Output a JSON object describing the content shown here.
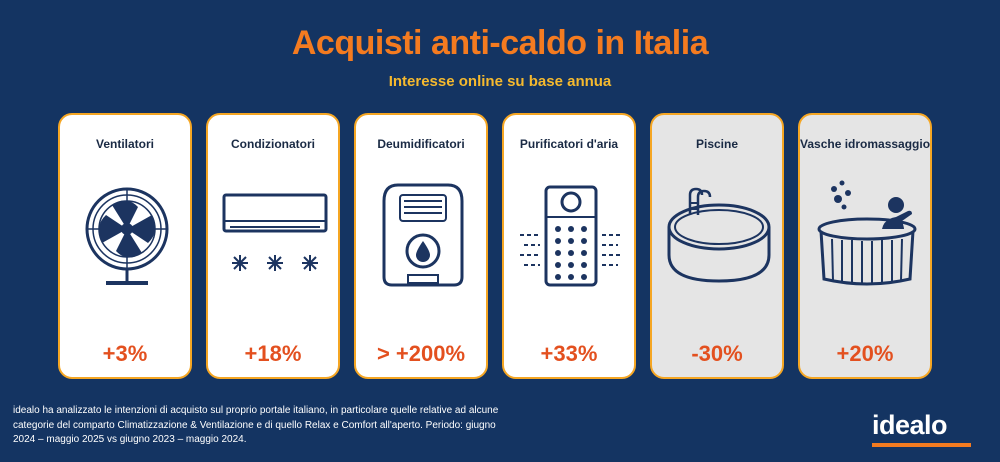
{
  "header": {
    "title": "Acquisti anti-caldo in Italia",
    "subtitle": "Interesse online su base annua"
  },
  "cards": [
    {
      "label": "Ventilatori",
      "value": "+3%",
      "icon": "fan-icon"
    },
    {
      "label": "Condizionatori",
      "value": "+18%",
      "icon": "air-conditioner-icon"
    },
    {
      "label": "Deumidificatori",
      "value": "> +200%",
      "icon": "dehumidifier-icon"
    },
    {
      "label": "Purificatori d'aria",
      "value": "+33%",
      "icon": "air-purifier-icon"
    },
    {
      "label": "Piscine",
      "value": "-30%",
      "icon": "pool-icon"
    },
    {
      "label": "Vasche idromassaggio",
      "value": "+20%",
      "icon": "hot-tub-icon"
    }
  ],
  "footnote": "idealo ha analizzato le intenzioni di acquisto sul proprio portale italiano, in particolare quelle relative ad alcune categorie del comparto Climatizzazione & Ventilazione e di quello Relax e Comfort all'aperto. Periodo: giugno 2024 – maggio 2025 vs giugno 2023 – maggio 2024.",
  "logo": "idealo",
  "colors": {
    "background": "#143462",
    "title": "#f47b20",
    "subtitle": "#f5b92e",
    "value": "#e3501f",
    "card_border": "#f5a623",
    "icon": "#1c3460"
  }
}
